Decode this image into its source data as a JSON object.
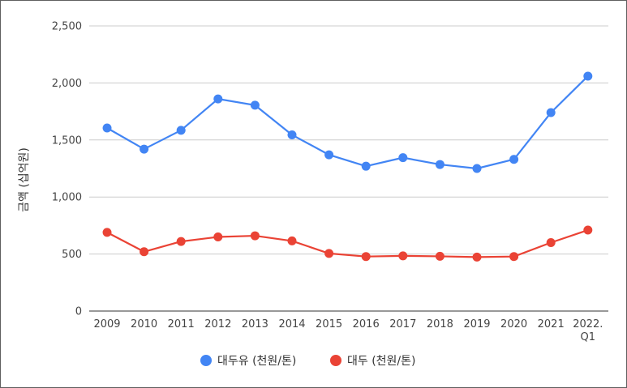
{
  "chart_data": {
    "type": "line",
    "x": [
      "2009",
      "2010",
      "2011",
      "2012",
      "2013",
      "2014",
      "2015",
      "2016",
      "2017",
      "2018",
      "2019",
      "2020",
      "2021",
      "2022.\nQ1"
    ],
    "series": [
      {
        "name": "대두유 (천원/톤)",
        "color": "#4285f4",
        "values": [
          1605,
          1420,
          1585,
          1860,
          1805,
          1545,
          1370,
          1270,
          1345,
          1285,
          1250,
          1330,
          1740,
          2060
        ]
      },
      {
        "name": "대두 (천원/톤)",
        "color": "#ea4335",
        "values": [
          690,
          520,
          610,
          650,
          660,
          615,
          505,
          478,
          484,
          480,
          473,
          478,
          600,
          710
        ]
      }
    ],
    "ylabel": "금액 (십억원)",
    "ylim": [
      0,
      2500
    ],
    "yticks": [
      "0",
      "500",
      "1,000",
      "1,500",
      "2,000",
      "2,500"
    ],
    "ytick_values": [
      0,
      500,
      1000,
      1500,
      2000,
      2500
    ],
    "grid": true,
    "legend_position": "bottom"
  }
}
